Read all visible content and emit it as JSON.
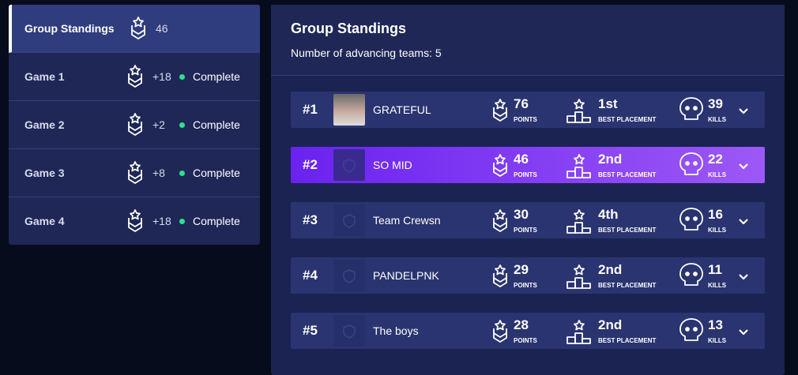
{
  "sidebar": {
    "items": [
      {
        "label": "Group Standings",
        "points": 46
      },
      {
        "label": "Game 1",
        "points": "+18",
        "status": "Complete"
      },
      {
        "label": "Game 2",
        "points": "+2",
        "status": "Complete"
      },
      {
        "label": "Game 3",
        "points": "+8",
        "status": "Complete"
      },
      {
        "label": "Game 4",
        "points": "+18",
        "status": "Complete"
      }
    ]
  },
  "panel": {
    "title": "Group Standings",
    "subtitle": "Number of advancing teams: 5",
    "labels": {
      "points": "POINTS",
      "placement": "BEST PLACEMENT",
      "kills": "KILLS"
    },
    "rows": [
      {
        "rank": "#1",
        "team": "GRATEFUL",
        "points": 76,
        "placement": "1st",
        "kills": 39
      },
      {
        "rank": "#2",
        "team": "SO MID",
        "points": 46,
        "placement": "2nd",
        "kills": 22
      },
      {
        "rank": "#3",
        "team": "Team Crewsn",
        "points": 30,
        "placement": "4th",
        "kills": 16
      },
      {
        "rank": "#4",
        "team": "PANDELPNK",
        "points": 29,
        "placement": "2nd",
        "kills": 11
      },
      {
        "rank": "#5",
        "team": "The boys",
        "points": 28,
        "placement": "2nd",
        "kills": 13
      }
    ]
  }
}
